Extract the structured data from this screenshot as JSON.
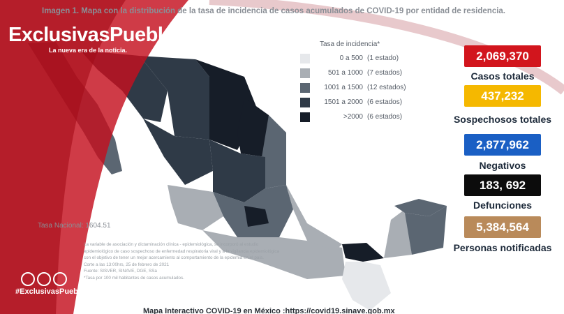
{
  "header": {
    "title": "Imagen 1. Mapa con la distribución de la tasa de incidencia de casos acumulados de COVID-19 por entidad de residencia.",
    "brand": "ExclusivasPuebla",
    "tagline": "La nueva era de la noticia."
  },
  "legend": {
    "title": "Tasa de incidencia*",
    "items": [
      {
        "range": "0 a 500",
        "count": "(1 estado)",
        "color": "#e6e8eb"
      },
      {
        "range": "501 a 1000",
        "count": "(7 estados)",
        "color": "#a9aeb4"
      },
      {
        "range": "1001 a 1500",
        "count": "(12 estados)",
        "color": "#5b6672"
      },
      {
        "range": "1501 a 2000",
        "count": "(6 estados)",
        "color": "#2f3a47"
      },
      {
        "range": ">2000",
        "count": "(6 estados)",
        "color": "#161d28"
      }
    ]
  },
  "stats": [
    {
      "value": "2,069,370",
      "label": "Casos totales",
      "color": "#d2151d",
      "text_color": "#ffffff"
    },
    {
      "value": "437,232",
      "label": "Sospechosos totales",
      "color": "#f5b800",
      "text_color": "#ffffff"
    },
    {
      "value": "2,877,962",
      "label": "Negativos",
      "color": "#1a5fc4",
      "text_color": "#ffffff"
    },
    {
      "value": "183, 692",
      "label": "Defunciones",
      "color": "#0c0c0c",
      "text_color": "#ffffff"
    },
    {
      "value": "5,384,564",
      "label": "Personas notificadas",
      "color": "#b98a5a",
      "text_color": "#ffffff"
    }
  ],
  "map": {
    "national_rate": "Tasa Nacional: 1604.51"
  },
  "notes": [
    "La variable de asociación y dictaminación clínica - epidemiológica, se incorporó al estudio",
    "epidemiológico de caso sospechoso de enfermedad respiratoria viral y a la vigilancia epidemiológica",
    "con el objetivo de tener un mejor acercamiento al comportamiento de la epidemia en el país.",
    "Corte a las 13:00hrs, 25 de febrero de 2021",
    "Fuente: SISVER, SINAVE, DGE, SSa",
    "*Tasa por 100 mil habitantes de casos acumulados."
  ],
  "social": {
    "hashtag": "#ExclusivasPuebla"
  },
  "footer": "Mapa Interactivo COVID-19 en México :https://covid19.sinave.gob.mx"
}
